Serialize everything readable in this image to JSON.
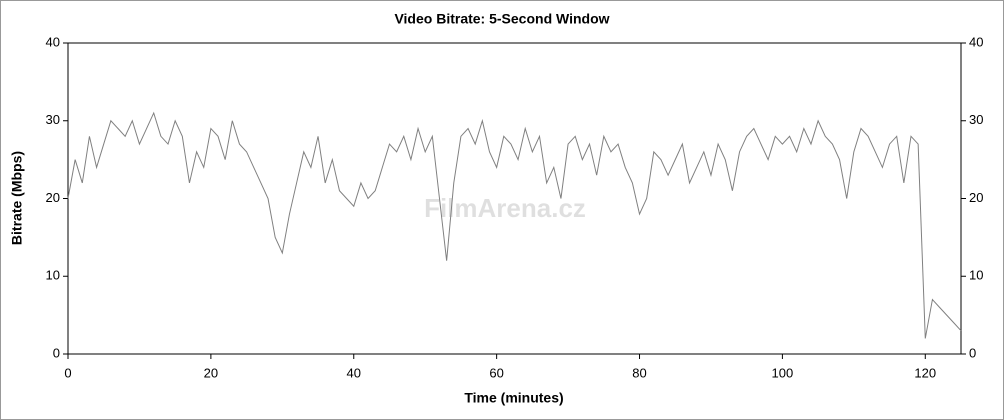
{
  "chart_data": {
    "type": "line",
    "title": "Video Bitrate: 5-Second Window",
    "x_label": "Time (minutes)",
    "y_label": "Bitrate (Mbps)",
    "watermark": "FilmArena.cz",
    "x": [
      0,
      1,
      2,
      3,
      4,
      5,
      6,
      7,
      8,
      9,
      10,
      11,
      12,
      13,
      14,
      15,
      16,
      17,
      18,
      19,
      20,
      21,
      22,
      23,
      24,
      25,
      26,
      27,
      28,
      29,
      30,
      31,
      32,
      33,
      34,
      35,
      36,
      37,
      38,
      39,
      40,
      41,
      42,
      43,
      44,
      45,
      46,
      47,
      48,
      49,
      50,
      51,
      52,
      53,
      54,
      55,
      56,
      57,
      58,
      59,
      60,
      61,
      62,
      63,
      64,
      65,
      66,
      67,
      68,
      69,
      70,
      71,
      72,
      73,
      74,
      75,
      76,
      77,
      78,
      79,
      80,
      81,
      82,
      83,
      84,
      85,
      86,
      87,
      88,
      89,
      90,
      91,
      92,
      93,
      94,
      95,
      96,
      97,
      98,
      99,
      100,
      101,
      102,
      103,
      104,
      105,
      106,
      107,
      108,
      109,
      110,
      111,
      112,
      113,
      114,
      115,
      116,
      117,
      118,
      119,
      120,
      121,
      122,
      123,
      124,
      125
    ],
    "series": [
      {
        "name": "Bitrate",
        "color": "#808080",
        "values": [
          20,
          25,
          22,
          28,
          24,
          27,
          30,
          29,
          28,
          30,
          27,
          29,
          31,
          28,
          27,
          30,
          28,
          22,
          26,
          24,
          29,
          28,
          25,
          30,
          27,
          26,
          24,
          22,
          20,
          15,
          13,
          18,
          22,
          26,
          24,
          28,
          22,
          25,
          21,
          20,
          19,
          22,
          20,
          21,
          24,
          27,
          26,
          28,
          25,
          29,
          26,
          28,
          20,
          12,
          22,
          28,
          29,
          27,
          30,
          26,
          24,
          28,
          27,
          25,
          29,
          26,
          28,
          22,
          24,
          20,
          27,
          28,
          25,
          27,
          23,
          28,
          26,
          27,
          24,
          22,
          18,
          20,
          26,
          25,
          23,
          25,
          27,
          22,
          24,
          26,
          23,
          27,
          25,
          21,
          26,
          28,
          29,
          27,
          25,
          28,
          27,
          28,
          26,
          29,
          27,
          30,
          28,
          27,
          25,
          20,
          26,
          29,
          28,
          26,
          24,
          27,
          28,
          22,
          28,
          27,
          2,
          7,
          6,
          5,
          4,
          3
        ]
      }
    ],
    "xlim": [
      0,
      125
    ],
    "xticks": [
      0,
      20,
      40,
      60,
      80,
      100,
      120
    ],
    "ylim": [
      0,
      40
    ],
    "yticks": [
      0,
      10,
      20,
      30,
      40
    ]
  }
}
